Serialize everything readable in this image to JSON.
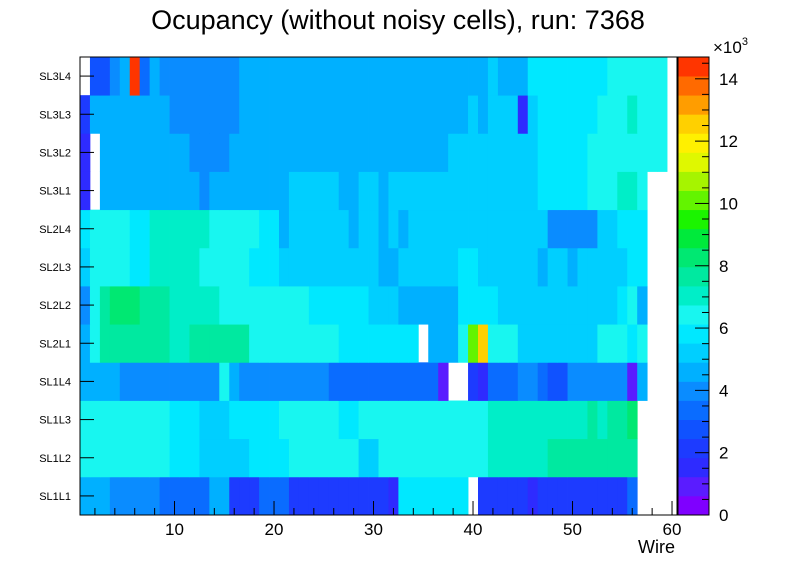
{
  "chart_data": {
    "type": "heatmap",
    "title": "Ocupancy (without noisy cells), run: 7368",
    "xlabel": "Wire",
    "ylabel": "",
    "xlim": [
      0.5,
      60.5
    ],
    "x_ticks": [
      "10",
      "20",
      "30",
      "40",
      "50",
      "60"
    ],
    "x_tick_values": [
      10,
      20,
      30,
      40,
      50,
      60
    ],
    "z_scale_label": "×10",
    "z_scale_exponent": "3",
    "z_ticks": [
      "0",
      "2",
      "4",
      "6",
      "8",
      "10",
      "12",
      "14"
    ],
    "z_tick_values": [
      0,
      2,
      4,
      6,
      8,
      10,
      12,
      14
    ],
    "zlim": [
      0,
      14.7
    ],
    "palette": [
      "#7f00ff",
      "#5a1cff",
      "#2e2bff",
      "#1d3bff",
      "#1052ff",
      "#0a6cff",
      "#0a8cff",
      "#00b0ff",
      "#00cfff",
      "#00e8ff",
      "#18f6f0",
      "#00eec8",
      "#00e9a0",
      "#00e872",
      "#00ea3b",
      "#1bf400",
      "#63f400",
      "#a6f400",
      "#dff800",
      "#fff000",
      "#ffd000",
      "#ff9d00",
      "#ff6a00",
      "#ff3500"
    ],
    "rows": [
      {
        "label": "SL1L1",
        "values": [
          4.8,
          4.8,
          4.8,
          4.0,
          4.0,
          4.0,
          4.0,
          4.0,
          3.4,
          3.4,
          3.4,
          3.4,
          3.4,
          4.8,
          4.8,
          2.2,
          2.2,
          2.2,
          3.4,
          3.4,
          3.4,
          2.2,
          2.2,
          2.2,
          2.2,
          2.2,
          2.2,
          2.2,
          2.2,
          2.2,
          2.2,
          1.8,
          5.6,
          5.6,
          5.6,
          5.6,
          5.6,
          5.6,
          5.6,
          null,
          2.2,
          2.2,
          2.2,
          2.2,
          2.2,
          1.8,
          2.2,
          2.2,
          2.2,
          2.2,
          2.2,
          2.2,
          2.2,
          2.2,
          2.2,
          3.4,
          null,
          null,
          null,
          null
        ]
      },
      {
        "label": "SL1L2",
        "values": [
          6.4,
          6.4,
          6.4,
          6.4,
          6.4,
          6.4,
          6.4,
          6.4,
          6.4,
          6.0,
          6.0,
          6.0,
          5.4,
          5.4,
          5.4,
          5.0,
          5.0,
          5.6,
          5.6,
          5.6,
          5.6,
          6.4,
          6.4,
          6.4,
          6.4,
          6.4,
          6.4,
          6.4,
          5.0,
          5.0,
          6.4,
          6.4,
          6.4,
          6.4,
          6.4,
          6.4,
          6.4,
          6.4,
          6.4,
          6.4,
          6.4,
          7.0,
          7.0,
          7.0,
          7.0,
          7.0,
          7.0,
          7.6,
          7.6,
          7.6,
          7.6,
          7.6,
          7.6,
          7.6,
          7.6,
          7.6,
          null,
          null,
          null,
          null
        ]
      },
      {
        "label": "SL1L3",
        "values": [
          6.4,
          6.4,
          6.4,
          6.4,
          6.4,
          6.4,
          6.4,
          6.4,
          6.4,
          5.8,
          5.8,
          5.8,
          5.0,
          5.0,
          5.0,
          5.6,
          5.6,
          5.6,
          5.6,
          5.6,
          6.4,
          6.4,
          6.4,
          6.4,
          6.4,
          6.4,
          5.6,
          5.6,
          6.4,
          6.4,
          6.4,
          6.4,
          6.4,
          6.4,
          6.4,
          6.4,
          6.4,
          6.4,
          6.4,
          6.4,
          6.4,
          6.8,
          6.8,
          7.0,
          7.0,
          7.0,
          7.0,
          7.0,
          7.0,
          7.0,
          7.0,
          7.6,
          7.0,
          7.6,
          7.6,
          8.0,
          null,
          null,
          null,
          null
        ]
      },
      {
        "label": "SL1L4",
        "values": [
          4.6,
          4.8,
          4.8,
          4.8,
          4.0,
          4.0,
          4.0,
          4.0,
          4.0,
          4.0,
          4.0,
          4.0,
          4.0,
          4.0,
          6.4,
          4.8,
          4.0,
          4.0,
          4.0,
          4.0,
          4.0,
          4.0,
          4.0,
          4.0,
          4.0,
          3.4,
          3.4,
          3.4,
          3.4,
          3.4,
          3.4,
          3.4,
          3.4,
          3.4,
          3.4,
          3.4,
          1.0,
          null,
          null,
          2.2,
          1.6,
          3.4,
          3.4,
          3.4,
          4.0,
          4.0,
          3.4,
          2.6,
          2.6,
          4.0,
          4.0,
          4.0,
          4.0,
          4.0,
          4.0,
          1.0,
          4.8,
          null,
          null,
          null
        ]
      },
      {
        "label": "SL2L1",
        "values": [
          4.6,
          6.4,
          7.8,
          7.8,
          7.8,
          7.8,
          7.8,
          7.8,
          7.8,
          7.0,
          7.0,
          7.6,
          7.6,
          7.6,
          7.6,
          7.6,
          7.6,
          6.4,
          6.4,
          6.4,
          6.4,
          6.4,
          6.4,
          6.4,
          6.4,
          6.4,
          5.6,
          5.6,
          5.6,
          5.6,
          5.6,
          5.6,
          5.6,
          5.6,
          null,
          4.8,
          4.8,
          4.8,
          6.4,
          9.8,
          12.8,
          6.4,
          6.4,
          6.4,
          5.4,
          5.4,
          5.4,
          5.4,
          5.4,
          5.4,
          5.4,
          5.4,
          6.4,
          6.4,
          6.4,
          5.6,
          6.4,
          null,
          null,
          null
        ]
      },
      {
        "label": "SL2L2",
        "values": [
          4.0,
          6.4,
          7.6,
          8.0,
          8.0,
          8.0,
          7.6,
          7.6,
          7.6,
          7.0,
          7.0,
          7.0,
          7.0,
          7.0,
          6.6,
          6.6,
          6.6,
          6.4,
          6.4,
          6.4,
          6.4,
          6.4,
          6.4,
          5.8,
          5.8,
          5.8,
          5.8,
          5.8,
          5.8,
          5.0,
          5.0,
          5.0,
          4.6,
          4.6,
          4.6,
          4.6,
          4.6,
          4.6,
          5.6,
          5.6,
          5.6,
          5.6,
          5.0,
          5.0,
          5.0,
          5.0,
          5.0,
          5.0,
          5.0,
          5.0,
          5.0,
          5.0,
          5.0,
          5.0,
          5.6,
          6.4,
          4.6,
          null,
          null,
          null
        ]
      },
      {
        "label": "SL2L3",
        "values": [
          5.0,
          6.6,
          6.6,
          6.6,
          6.6,
          6.0,
          6.0,
          7.0,
          7.0,
          7.0,
          7.0,
          7.0,
          6.4,
          6.4,
          6.4,
          6.4,
          6.4,
          6.0,
          6.0,
          6.0,
          5.0,
          5.0,
          5.0,
          5.0,
          5.0,
          5.0,
          5.0,
          5.0,
          5.0,
          5.0,
          4.4,
          4.4,
          5.0,
          5.0,
          5.0,
          5.0,
          5.0,
          5.0,
          6.0,
          6.0,
          5.0,
          5.0,
          5.0,
          5.0,
          5.0,
          5.0,
          4.4,
          5.0,
          5.0,
          4.4,
          5.0,
          5.0,
          5.0,
          5.0,
          5.0,
          6.0,
          6.0,
          null,
          null,
          null
        ]
      },
      {
        "label": "SL2L4",
        "values": [
          5.8,
          6.6,
          6.6,
          6.6,
          6.6,
          6.0,
          6.0,
          7.0,
          7.0,
          7.0,
          7.0,
          7.0,
          7.0,
          6.4,
          6.4,
          6.6,
          6.6,
          6.6,
          6.0,
          6.0,
          4.8,
          5.0,
          5.0,
          5.0,
          5.0,
          5.0,
          5.0,
          4.4,
          5.0,
          5.0,
          4.4,
          5.0,
          4.4,
          5.0,
          5.0,
          5.0,
          5.0,
          5.0,
          5.0,
          5.0,
          5.0,
          5.0,
          5.0,
          5.0,
          5.0,
          5.0,
          5.0,
          4.2,
          4.2,
          4.2,
          4.2,
          4.2,
          5.0,
          5.0,
          6.0,
          6.0,
          6.0,
          null,
          null,
          null
        ]
      },
      {
        "label": "SL3L1",
        "values": [
          1.4,
          null,
          4.8,
          4.8,
          4.8,
          4.8,
          4.8,
          4.8,
          4.8,
          4.8,
          4.8,
          4.8,
          4.0,
          4.8,
          4.8,
          4.8,
          4.8,
          4.8,
          4.8,
          4.8,
          4.8,
          5.0,
          5.0,
          5.0,
          5.0,
          5.0,
          4.8,
          4.8,
          5.0,
          5.0,
          4.8,
          5.0,
          5.0,
          5.0,
          5.0,
          5.0,
          5.0,
          5.0,
          5.0,
          5.0,
          5.0,
          5.0,
          5.0,
          5.0,
          5.0,
          5.0,
          5.6,
          5.6,
          5.6,
          5.6,
          5.6,
          6.4,
          6.4,
          6.4,
          7.0,
          7.0,
          6.4,
          null,
          null,
          null
        ]
      },
      {
        "label": "SL3L2",
        "values": [
          1.6,
          null,
          4.8,
          4.8,
          4.8,
          4.8,
          4.8,
          4.8,
          4.8,
          4.8,
          4.8,
          4.0,
          4.0,
          4.0,
          4.0,
          4.8,
          4.8,
          4.8,
          4.8,
          4.8,
          4.8,
          4.8,
          4.8,
          4.8,
          4.8,
          4.8,
          4.8,
          4.8,
          4.8,
          4.8,
          4.8,
          4.8,
          4.8,
          4.8,
          4.8,
          4.8,
          4.8,
          5.0,
          5.0,
          5.0,
          5.0,
          5.0,
          5.0,
          5.0,
          5.0,
          5.0,
          5.6,
          5.6,
          5.6,
          5.6,
          5.6,
          6.4,
          6.4,
          6.4,
          6.4,
          6.4,
          6.4,
          6.4,
          6.4,
          null
        ]
      },
      {
        "label": "SL3L3",
        "values": [
          2.2,
          4.4,
          4.8,
          4.8,
          4.8,
          4.8,
          4.8,
          4.8,
          4.8,
          4.0,
          4.0,
          4.0,
          4.0,
          4.0,
          4.0,
          4.0,
          4.8,
          4.8,
          4.8,
          4.8,
          4.8,
          4.8,
          4.8,
          4.8,
          4.8,
          4.8,
          4.8,
          4.8,
          4.8,
          4.8,
          4.8,
          4.8,
          4.8,
          4.8,
          4.8,
          4.8,
          4.8,
          4.8,
          4.8,
          5.0,
          4.4,
          5.0,
          5.0,
          5.0,
          1.6,
          5.0,
          5.6,
          5.6,
          5.6,
          5.6,
          5.6,
          5.6,
          6.4,
          6.4,
          6.4,
          7.0,
          6.4,
          6.4,
          6.4,
          null
        ]
      },
      {
        "label": "SL3L4",
        "values": [
          null,
          2.8,
          2.8,
          4.0,
          4.8,
          14.4,
          3.6,
          4.8,
          4.0,
          4.0,
          4.0,
          4.0,
          4.0,
          4.0,
          4.0,
          4.0,
          4.8,
          4.8,
          4.8,
          4.8,
          4.8,
          4.8,
          4.8,
          4.8,
          4.8,
          4.8,
          4.8,
          4.8,
          4.8,
          4.8,
          4.8,
          4.8,
          4.8,
          4.8,
          4.8,
          4.8,
          4.8,
          4.8,
          4.8,
          4.8,
          4.8,
          5.0,
          4.8,
          4.8,
          4.8,
          5.6,
          5.6,
          5.6,
          5.6,
          5.8,
          5.8,
          5.8,
          5.8,
          6.4,
          6.4,
          6.4,
          6.4,
          6.4,
          6.4,
          null
        ]
      }
    ]
  }
}
